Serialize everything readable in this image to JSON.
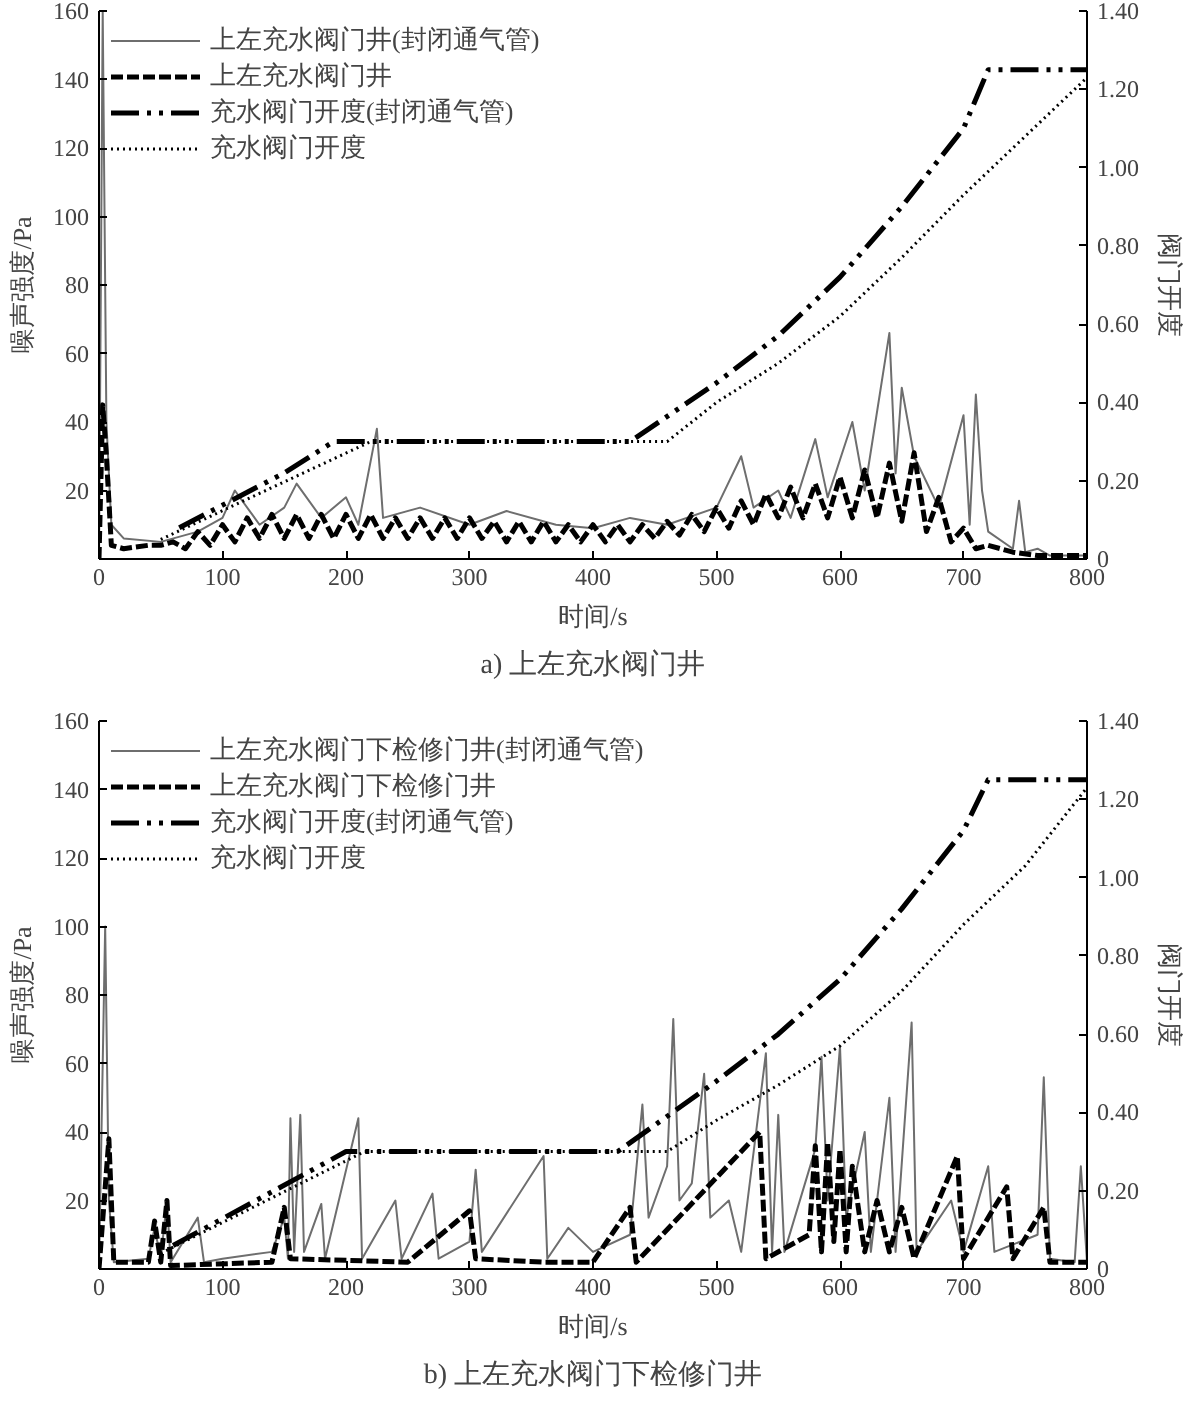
{
  "chart_data": [
    {
      "type": "line",
      "title": "a) 上左充水阀门井",
      "xlabel": "时间/s",
      "ylabel": "噪声强度/Pa",
      "y2label": "阀门开度",
      "xlim": [
        0,
        800
      ],
      "xticks": [
        0,
        100,
        200,
        300,
        400,
        500,
        600,
        700,
        800
      ],
      "ylim": [
        0,
        160
      ],
      "yticks": [
        {
          "value": 0,
          "label": null
        },
        20,
        40,
        60,
        80,
        100,
        120,
        140,
        160
      ],
      "y2lim": [
        0,
        1.4
      ],
      "y2ticks": [
        0,
        {
          "value": 0.2,
          "label": "0.20"
        },
        {
          "value": 0.4,
          "label": "0.40"
        },
        {
          "value": 0.6,
          "label": "0.60"
        },
        {
          "value": 0.8,
          "label": "0.80"
        },
        {
          "value": 1.0,
          "label": "1.00"
        },
        {
          "value": 1.2,
          "label": "1.20"
        },
        {
          "value": 1.4,
          "label": "1.40"
        }
      ],
      "grid": false,
      "legend": "top left",
      "series": [
        {
          "name": "上左充水阀门井(封闭通气管)",
          "color": "#6e6e6e",
          "line_style": "solid",
          "x": [
            0,
            3,
            6,
            10,
            20,
            50,
            80,
            100,
            110,
            130,
            150,
            160,
            180,
            200,
            210,
            225,
            230,
            260,
            300,
            330,
            370,
            400,
            430,
            460,
            500,
            520,
            530,
            550,
            560,
            580,
            590,
            610,
            620,
            640,
            645,
            650,
            660,
            680,
            700,
            705,
            710,
            715,
            720,
            740,
            745,
            750,
            760,
            770,
            800
          ],
          "values": [
            0,
            160,
            40,
            10,
            6,
            5,
            8,
            12,
            20,
            10,
            15,
            22,
            12,
            18,
            10,
            38,
            12,
            15,
            10,
            14,
            10,
            9,
            12,
            10,
            15,
            30,
            15,
            20,
            12,
            35,
            18,
            40,
            20,
            66,
            25,
            50,
            30,
            15,
            42,
            10,
            48,
            20,
            8,
            3,
            17,
            2,
            3,
            1,
            1
          ]
        },
        {
          "name": "上左充水阀门井",
          "color": "#000000",
          "line_style": "dashed",
          "x": [
            0,
            3,
            6,
            10,
            20,
            40,
            50,
            60,
            70,
            80,
            90,
            100,
            110,
            120,
            130,
            140,
            150,
            160,
            170,
            180,
            190,
            200,
            210,
            220,
            230,
            240,
            250,
            260,
            270,
            280,
            290,
            300,
            310,
            320,
            330,
            340,
            350,
            360,
            370,
            380,
            390,
            400,
            410,
            420,
            430,
            440,
            450,
            460,
            470,
            480,
            490,
            500,
            510,
            520,
            530,
            540,
            550,
            560,
            570,
            580,
            590,
            600,
            610,
            620,
            630,
            640,
            650,
            660,
            670,
            680,
            690,
            700,
            710,
            720,
            740,
            760,
            800
          ],
          "values": [
            0,
            45,
            30,
            4,
            3,
            4,
            4,
            5,
            3,
            8,
            4,
            10,
            5,
            12,
            6,
            13,
            6,
            13,
            6,
            13,
            6,
            13,
            6,
            13,
            6,
            12,
            6,
            12,
            6,
            12,
            6,
            12,
            6,
            11,
            5,
            11,
            5,
            11,
            5,
            10,
            5,
            10,
            5,
            10,
            5,
            10,
            6,
            11,
            7,
            13,
            8,
            15,
            9,
            17,
            10,
            19,
            12,
            21,
            12,
            22,
            12,
            24,
            12,
            26,
            12,
            28,
            11,
            31,
            8,
            18,
            5,
            9,
            3,
            4,
            2,
            1,
            1
          ]
        },
        {
          "name": "充水阀门开度(封闭通气管)",
          "color": "#000000",
          "line_style": "dashdot",
          "axis": "y2",
          "x": [
            65,
            150,
            190,
            430,
            500,
            550,
            600,
            650,
            700,
            720,
            800
          ],
          "values": [
            0.08,
            0.22,
            0.3,
            0.3,
            0.45,
            0.57,
            0.72,
            0.9,
            1.1,
            1.25,
            1.25
          ]
        },
        {
          "name": "充水阀门开度",
          "color": "#000000",
          "line_style": "dotted",
          "axis": "y2",
          "x": [
            50,
            220,
            460,
            500,
            550,
            600,
            650,
            700,
            750,
            800
          ],
          "values": [
            0.05,
            0.3,
            0.3,
            0.4,
            0.5,
            0.62,
            0.77,
            0.93,
            1.08,
            1.23
          ]
        }
      ]
    },
    {
      "type": "line",
      "title": "b) 上左充水阀门下检修门井",
      "xlabel": "时间/s",
      "ylabel": "噪声强度/Pa",
      "y2label": "阀门开度",
      "xlim": [
        0,
        800
      ],
      "xticks": [
        0,
        100,
        200,
        300,
        400,
        500,
        600,
        700,
        800
      ],
      "ylim": [
        0,
        160
      ],
      "yticks": [
        {
          "value": 0,
          "label": null
        },
        20,
        40,
        60,
        80,
        100,
        120,
        140,
        160
      ],
      "y2lim": [
        0,
        1.4
      ],
      "y2ticks": [
        0,
        {
          "value": 0.2,
          "label": "0.20"
        },
        {
          "value": 0.4,
          "label": "0.40"
        },
        {
          "value": 0.6,
          "label": "0.60"
        },
        {
          "value": 0.8,
          "label": "0.80"
        },
        {
          "value": 1.0,
          "label": "1.00"
        },
        {
          "value": 1.2,
          "label": "1.20"
        },
        {
          "value": 1.4,
          "label": "1.40"
        }
      ],
      "grid": false,
      "legend": "top left",
      "series": [
        {
          "name": "上左充水阀门下检修门井(封闭通气管)",
          "color": "#6e6e6e",
          "line_style": "solid",
          "x": [
            0,
            5,
            8,
            12,
            40,
            45,
            50,
            55,
            58,
            80,
            85,
            100,
            140,
            150,
            153,
            155,
            158,
            163,
            166,
            180,
            183,
            210,
            213,
            240,
            245,
            270,
            275,
            300,
            305,
            310,
            360,
            363,
            380,
            400,
            430,
            440,
            445,
            460,
            465,
            470,
            480,
            490,
            495,
            510,
            520,
            540,
            545,
            550,
            555,
            580,
            585,
            590,
            600,
            605,
            620,
            625,
            640,
            645,
            658,
            662,
            690,
            700,
            720,
            725,
            760,
            765,
            770,
            790,
            795,
            800
          ],
          "values": [
            0,
            100,
            20,
            2,
            3,
            12,
            3,
            20,
            2,
            15,
            2,
            3,
            5,
            15,
            3,
            44,
            5,
            45,
            5,
            19,
            3,
            44,
            3,
            20,
            3,
            22,
            3,
            8,
            29,
            5,
            33,
            3,
            12,
            5,
            10,
            48,
            15,
            30,
            73,
            20,
            25,
            57,
            15,
            20,
            5,
            63,
            5,
            45,
            5,
            35,
            62,
            20,
            65,
            15,
            40,
            5,
            50,
            5,
            72,
            5,
            20,
            5,
            30,
            5,
            10,
            56,
            3,
            2,
            30,
            2
          ]
        },
        {
          "name": "上左充水阀门下检修门井",
          "color": "#000000",
          "line_style": "dashed",
          "x": [
            0,
            8,
            12,
            40,
            45,
            50,
            55,
            58,
            140,
            150,
            155,
            250,
            300,
            305,
            360,
            400,
            430,
            435,
            535,
            540,
            575,
            580,
            585,
            590,
            595,
            600,
            605,
            610,
            620,
            630,
            640,
            650,
            660,
            695,
            700,
            735,
            740,
            765,
            770,
            800
          ],
          "values": [
            0,
            38,
            2,
            2,
            14,
            2,
            20,
            1,
            2,
            18,
            3,
            2,
            17,
            3,
            2,
            2,
            18,
            2,
            40,
            3,
            10,
            36,
            5,
            37,
            8,
            35,
            5,
            30,
            5,
            20,
            5,
            18,
            3,
            33,
            3,
            24,
            3,
            18,
            2,
            2
          ]
        },
        {
          "name": "充水阀门开度(封闭通气管)",
          "color": "#000000",
          "line_style": "dashdot",
          "axis": "y2",
          "x": [
            60,
            200,
            420,
            500,
            550,
            600,
            650,
            700,
            720,
            800
          ],
          "values": [
            0.06,
            0.3,
            0.3,
            0.48,
            0.6,
            0.74,
            0.92,
            1.12,
            1.25,
            1.25
          ]
        },
        {
          "name": "充水阀门开度",
          "color": "#000000",
          "line_style": "dotted",
          "axis": "y2",
          "x": [
            50,
            215,
            460,
            500,
            550,
            600,
            650,
            700,
            750,
            800
          ],
          "values": [
            0.04,
            0.3,
            0.3,
            0.38,
            0.47,
            0.57,
            0.71,
            0.88,
            1.03,
            1.23
          ]
        }
      ]
    }
  ]
}
